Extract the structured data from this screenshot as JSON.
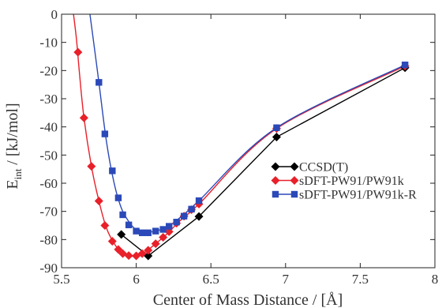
{
  "chart_data": {
    "type": "line",
    "title": "",
    "xlabel": "Center of Mass Distance / [Å]",
    "ylabel_main": "E",
    "ylabel_sub": "int",
    "ylabel_rest": " / [kJ/mol]",
    "xlim": [
      5.5,
      8.0
    ],
    "ylim": [
      -90,
      0
    ],
    "xticks": [
      5.5,
      6,
      6.5,
      7,
      7.5,
      8
    ],
    "xtick_labels": [
      "5.5",
      "6",
      "6.5",
      "7",
      "7.5",
      "8"
    ],
    "yticks": [
      0,
      -10,
      -20,
      -30,
      -40,
      -50,
      -60,
      -70,
      -80,
      -90
    ],
    "ytick_labels": [
      "0",
      "-10",
      "-20",
      "-30",
      "-40",
      "-50",
      "-60",
      "-70",
      "-80",
      "-90"
    ],
    "grid": false,
    "legend_position": "right",
    "series": [
      {
        "name": "CCSD(T)",
        "color": "#000000",
        "marker": "diamond",
        "curve": "polyline",
        "x": [
          5.9,
          6.08,
          6.42,
          6.94,
          7.8
        ],
        "y": [
          -78.2,
          -85.8,
          -71.8,
          -43.6,
          -19.0
        ]
      },
      {
        "name": "sDFT-PW91/PW91k",
        "color": "#e8202a",
        "marker": "diamond",
        "curve": "smooth",
        "x": [
          5.61,
          5.65,
          5.7,
          5.75,
          5.79,
          5.84,
          5.88,
          5.91,
          5.95,
          6.0,
          6.04,
          6.08,
          6.13,
          6.18,
          6.22,
          6.27,
          6.32,
          6.37,
          6.42,
          6.94,
          7.8
        ],
        "y": [
          -13.5,
          -36.8,
          -54.0,
          -66.3,
          -75.0,
          -80.6,
          -83.5,
          -85.0,
          -85.7,
          -85.8,
          -85.0,
          -83.8,
          -81.5,
          -79.2,
          -77.2,
          -74.2,
          -71.7,
          -69.4,
          -67.4,
          -40.6,
          -18.4
        ],
        "curve_x": [
          5.58,
          5.6,
          5.62,
          5.65,
          5.7,
          5.75,
          5.8,
          5.85,
          5.9,
          5.95,
          6.0,
          6.05,
          6.1,
          6.2,
          6.3,
          6.42,
          6.94,
          7.8
        ],
        "curve_y": [
          0,
          -9.0,
          -21.0,
          -36.8,
          -54.0,
          -66.3,
          -75.8,
          -81.2,
          -84.5,
          -85.8,
          -85.8,
          -84.8,
          -82.8,
          -78.3,
          -73.0,
          -67.4,
          -40.6,
          -18.4
        ]
      },
      {
        "name": "sDFT-PW91/PW91k-R",
        "color": "#2b49b8",
        "marker": "square",
        "curve": "smooth",
        "x": [
          5.75,
          5.79,
          5.84,
          5.88,
          5.91,
          5.95,
          6.0,
          6.04,
          6.08,
          6.13,
          6.18,
          6.22,
          6.27,
          6.32,
          6.37,
          6.42,
          6.94,
          7.8
        ],
        "y": [
          -24.2,
          -42.5,
          -55.6,
          -65.2,
          -71.2,
          -74.8,
          -77.0,
          -77.6,
          -77.6,
          -77.0,
          -76.4,
          -75.3,
          -73.8,
          -71.7,
          -69.2,
          -66.2,
          -40.3,
          -18.0
        ],
        "curve_x": [
          5.69,
          5.72,
          5.75,
          5.8,
          5.85,
          5.9,
          5.95,
          6.0,
          6.05,
          6.1,
          6.2,
          6.3,
          6.42,
          6.94,
          7.8
        ],
        "curve_y": [
          0,
          -12.0,
          -24.2,
          -45.0,
          -59.5,
          -68.8,
          -73.6,
          -76.6,
          -77.6,
          -77.3,
          -75.8,
          -71.9,
          -66.2,
          -40.3,
          -18.0
        ]
      }
    ]
  }
}
